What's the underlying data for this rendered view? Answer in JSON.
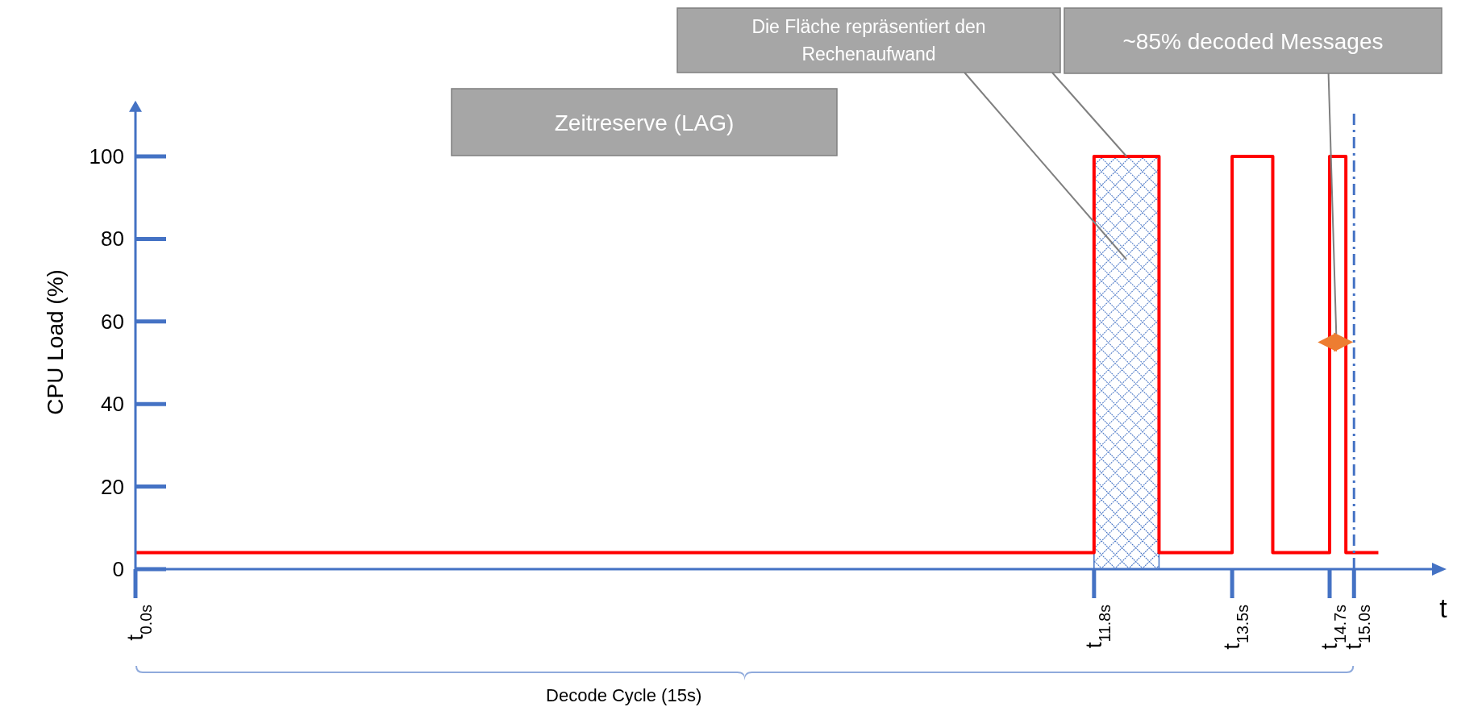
{
  "chart_data": {
    "type": "step",
    "ylabel": "CPU Load (%)",
    "xlabel": "t",
    "series": [
      {
        "type": "area",
        "color": "#4472c4",
        "x": [
          11.8,
          12.6
        ],
        "values": [
          100,
          100
        ]
      },
      {
        "color": "#ff0000",
        "x": [
          0,
          11.8,
          12.6,
          13.5,
          14.0,
          14.7,
          14.9,
          15.3
        ],
        "values": [
          4,
          100,
          4,
          100,
          4,
          100,
          4,
          4
        ]
      }
    ],
    "xlim": [
      0,
      16
    ],
    "ylim": [
      0,
      110
    ],
    "xticks": [
      {
        "value": 0,
        "label": "t$_{0.0s}$"
      },
      {
        "value": 11.8,
        "label": "t$_{11.8s}$"
      },
      {
        "value": 13.5,
        "label": "t$_{13.5s}$"
      },
      {
        "value": 14.7,
        "label": "t$_{14.7s}$"
      },
      {
        "value": 15,
        "label": "t$_{15.0s}$"
      }
    ],
    "yticks": [
      0,
      20,
      40,
      60,
      80,
      100
    ],
    "ref_lines": [
      {
        "axis": "x",
        "value": 15,
        "color": "#4472c4",
        "line_style": "dashed"
      }
    ],
    "annotations": [
      "Die Fläche repräsentiert den Rechenaufwand",
      "~85% decoded Messages",
      "Zeitreserve (LAG)",
      "Decode Cycle (15s)"
    ]
  }
}
